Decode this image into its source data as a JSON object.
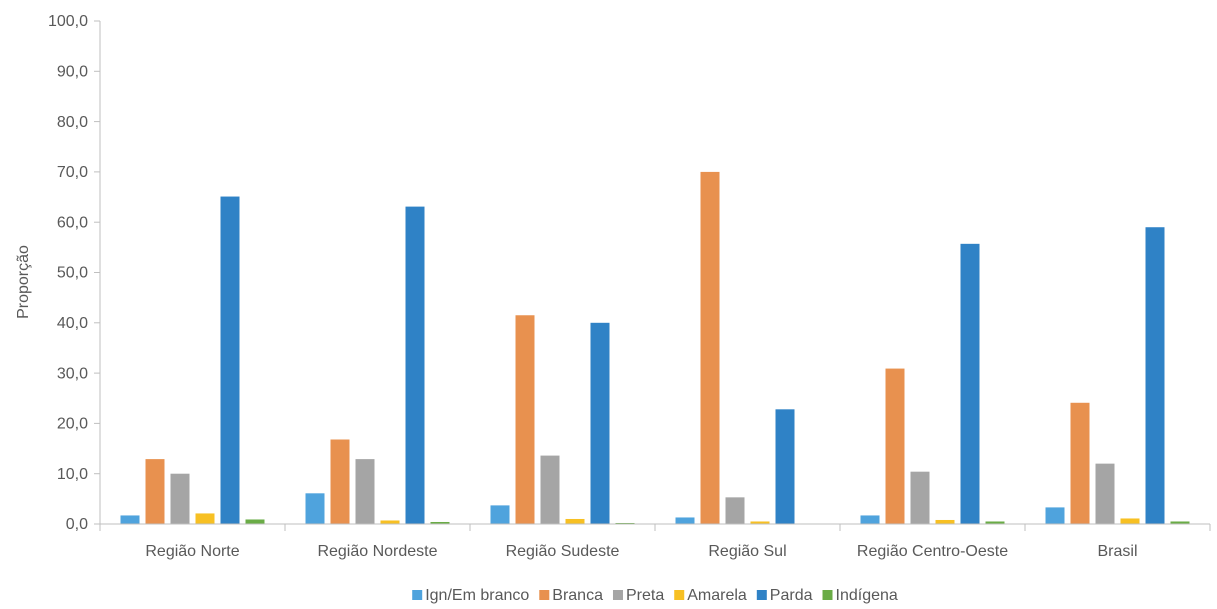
{
  "chart_data": {
    "type": "bar",
    "title": "",
    "xlabel": "",
    "ylabel": "Proporção",
    "ylim": [
      0,
      100
    ],
    "yticks": [
      "0,0",
      "10,0",
      "20,0",
      "30,0",
      "40,0",
      "50,0",
      "60,0",
      "70,0",
      "80,0",
      "90,0",
      "100,0"
    ],
    "categories": [
      "Região Norte",
      "Região Nordeste",
      "Região Sudeste",
      "Região Sul",
      "Região Centro-Oeste",
      "Brasil"
    ],
    "series": [
      {
        "name": "Ign/Em branco",
        "color": "#4fa3dd",
        "values": [
          1.7,
          6.1,
          3.7,
          1.3,
          1.7,
          3.3
        ]
      },
      {
        "name": "Branca",
        "color": "#e8914f",
        "values": [
          12.9,
          16.8,
          41.5,
          70.0,
          30.9,
          24.1
        ]
      },
      {
        "name": "Preta",
        "color": "#a5a5a5",
        "values": [
          10.0,
          12.9,
          13.6,
          5.3,
          10.4,
          12.0
        ]
      },
      {
        "name": "Amarela",
        "color": "#f7c023",
        "values": [
          2.1,
          0.7,
          1.0,
          0.5,
          0.8,
          1.1
        ]
      },
      {
        "name": "Parda",
        "color": "#2f82c6",
        "values": [
          65.1,
          63.1,
          40.0,
          22.8,
          55.7,
          59.0
        ]
      },
      {
        "name": "Indígena",
        "color": "#6aac46",
        "values": [
          0.9,
          0.4,
          0.2,
          0.1,
          0.5,
          0.5
        ]
      }
    ],
    "grid": true,
    "legend_position": "bottom"
  }
}
